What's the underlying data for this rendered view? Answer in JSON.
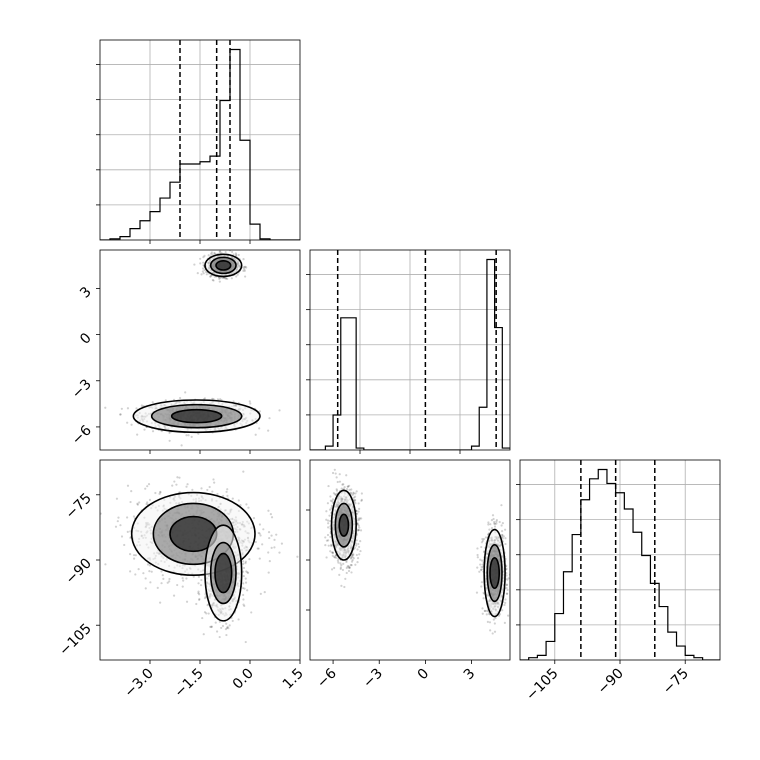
{
  "chart_data": [
    {
      "panel": "p1-hist",
      "type": "histogram",
      "xlim": [
        -4.5,
        1.5
      ],
      "bin_edges": [
        -4.5,
        -4.2,
        -3.9,
        -3.6,
        -3.3,
        -3.0,
        -2.7,
        -2.4,
        -2.1,
        -1.8,
        -1.5,
        -1.2,
        -0.9,
        -0.6,
        -0.3,
        0.0,
        0.3,
        0.6,
        0.9,
        1.2,
        1.5
      ],
      "counts": [
        0,
        1,
        3,
        10,
        17,
        25,
        37,
        51,
        67,
        67,
        69,
        74,
        123,
        168,
        88,
        14,
        1,
        0,
        0,
        0
      ],
      "quantiles": [
        -2.1,
        -1.0,
        -0.6
      ],
      "grid": true
    },
    {
      "panel": "p1-p2",
      "type": "scatter-density",
      "xlim": [
        -4.5,
        1.5
      ],
      "ylim": [
        -7.5,
        5.5
      ],
      "clusters": [
        {
          "mean": [
            -1.6,
            -5.3
          ],
          "sd": [
            0.75,
            0.45
          ],
          "contours": [
            [
              0.75,
              0.42
            ],
            [
              1.35,
              0.75
            ],
            [
              1.9,
              1.05
            ]
          ]
        },
        {
          "mean": [
            -0.8,
            4.5
          ],
          "sd": [
            0.22,
            0.32
          ],
          "contours": [
            [
              0.22,
              0.3
            ],
            [
              0.38,
              0.52
            ],
            [
              0.55,
              0.72
            ]
          ]
        }
      ],
      "ytick_labels": [
        "3",
        "0",
        "−3",
        "−6"
      ],
      "ytick_values": [
        3,
        0,
        -3,
        -6
      ]
    },
    {
      "panel": "p2-hist",
      "type": "histogram",
      "xlim": [
        -7.5,
        5.5
      ],
      "bin_edges": [
        -7.5,
        -7.0,
        -6.5,
        -6.0,
        -5.5,
        -5.0,
        -4.5,
        -4.0,
        -3.5,
        -3.0,
        -2.5,
        -2.0,
        -1.5,
        -1.0,
        -0.5,
        0.0,
        0.5,
        1.0,
        1.5,
        2.0,
        2.5,
        3.0,
        3.5,
        4.0,
        4.5,
        5.0,
        5.5
      ],
      "counts": [
        0,
        0,
        2,
        18,
        68,
        68,
        1,
        0,
        0,
        0,
        0,
        0,
        0,
        0,
        0,
        0,
        0,
        0,
        0,
        0,
        0,
        2,
        22,
        98,
        63,
        1
      ],
      "quantiles": [
        -5.7,
        0.0,
        4.6
      ],
      "grid": true
    },
    {
      "panel": "p1-p3",
      "type": "scatter-density",
      "xlim": [
        -4.5,
        1.5
      ],
      "ylim": [
        -113,
        -67
      ],
      "clusters": [
        {
          "mean": [
            -1.7,
            -84
          ],
          "sd": [
            0.9,
            5.0
          ],
          "contours": [
            [
              0.7,
              4.0
            ],
            [
              1.2,
              7.0
            ],
            [
              1.85,
              9.5
            ]
          ]
        },
        {
          "mean": [
            -0.8,
            -93
          ],
          "sd": [
            0.25,
            5.0
          ],
          "contours": [
            [
              0.25,
              4.5
            ],
            [
              0.38,
              7.0
            ],
            [
              0.55,
              11.0
            ]
          ]
        }
      ],
      "xtick_labels": [
        "−3.0",
        "−1.5",
        "0.0",
        "1.5"
      ],
      "xtick_values": [
        -3,
        -1.5,
        0,
        1.5
      ],
      "ytick_labels": [
        "−75",
        "−90",
        "−105"
      ],
      "ytick_values": [
        -75,
        -90,
        -105
      ]
    },
    {
      "panel": "p2-p3",
      "type": "scatter-density",
      "xlim": [
        -7.5,
        5.5
      ],
      "ylim": [
        -113,
        -67
      ],
      "clusters": [
        {
          "mean": [
            -5.3,
            -82
          ],
          "sd": [
            0.45,
            4.0
          ],
          "contours": [
            [
              0.3,
              2.5
            ],
            [
              0.55,
              5.0
            ],
            [
              0.8,
              8.0
            ]
          ]
        },
        {
          "mean": [
            4.5,
            -93
          ],
          "sd": [
            0.35,
            4.5
          ],
          "contours": [
            [
              0.3,
              3.5
            ],
            [
              0.48,
              6.5
            ],
            [
              0.68,
              10.0
            ]
          ]
        }
      ],
      "xtick_labels": [
        "−6",
        "−3",
        "0",
        "3"
      ],
      "xtick_values": [
        -6,
        -3,
        0,
        3
      ]
    },
    {
      "panel": "p3-hist",
      "type": "histogram",
      "xlim": [
        -113,
        -67
      ],
      "bin_edges": [
        -113,
        -111,
        -109,
        -107,
        -105,
        -103,
        -101,
        -99,
        -97,
        -95,
        -93,
        -91,
        -89,
        -87,
        -85,
        -83,
        -81,
        -79,
        -77,
        -75,
        -73,
        -71,
        -69,
        -67
      ],
      "counts": [
        0,
        1,
        2,
        8,
        20,
        38,
        54,
        69,
        78,
        82,
        76,
        72,
        65,
        55,
        45,
        33,
        23,
        12,
        6,
        2,
        1,
        0,
        0
      ],
      "quantiles": [
        -99,
        -91,
        -82
      ],
      "xtick_labels": [
        "−105",
        "−90",
        "−75"
      ],
      "xtick_values": [
        -105,
        -90,
        -75
      ],
      "grid": true
    }
  ]
}
